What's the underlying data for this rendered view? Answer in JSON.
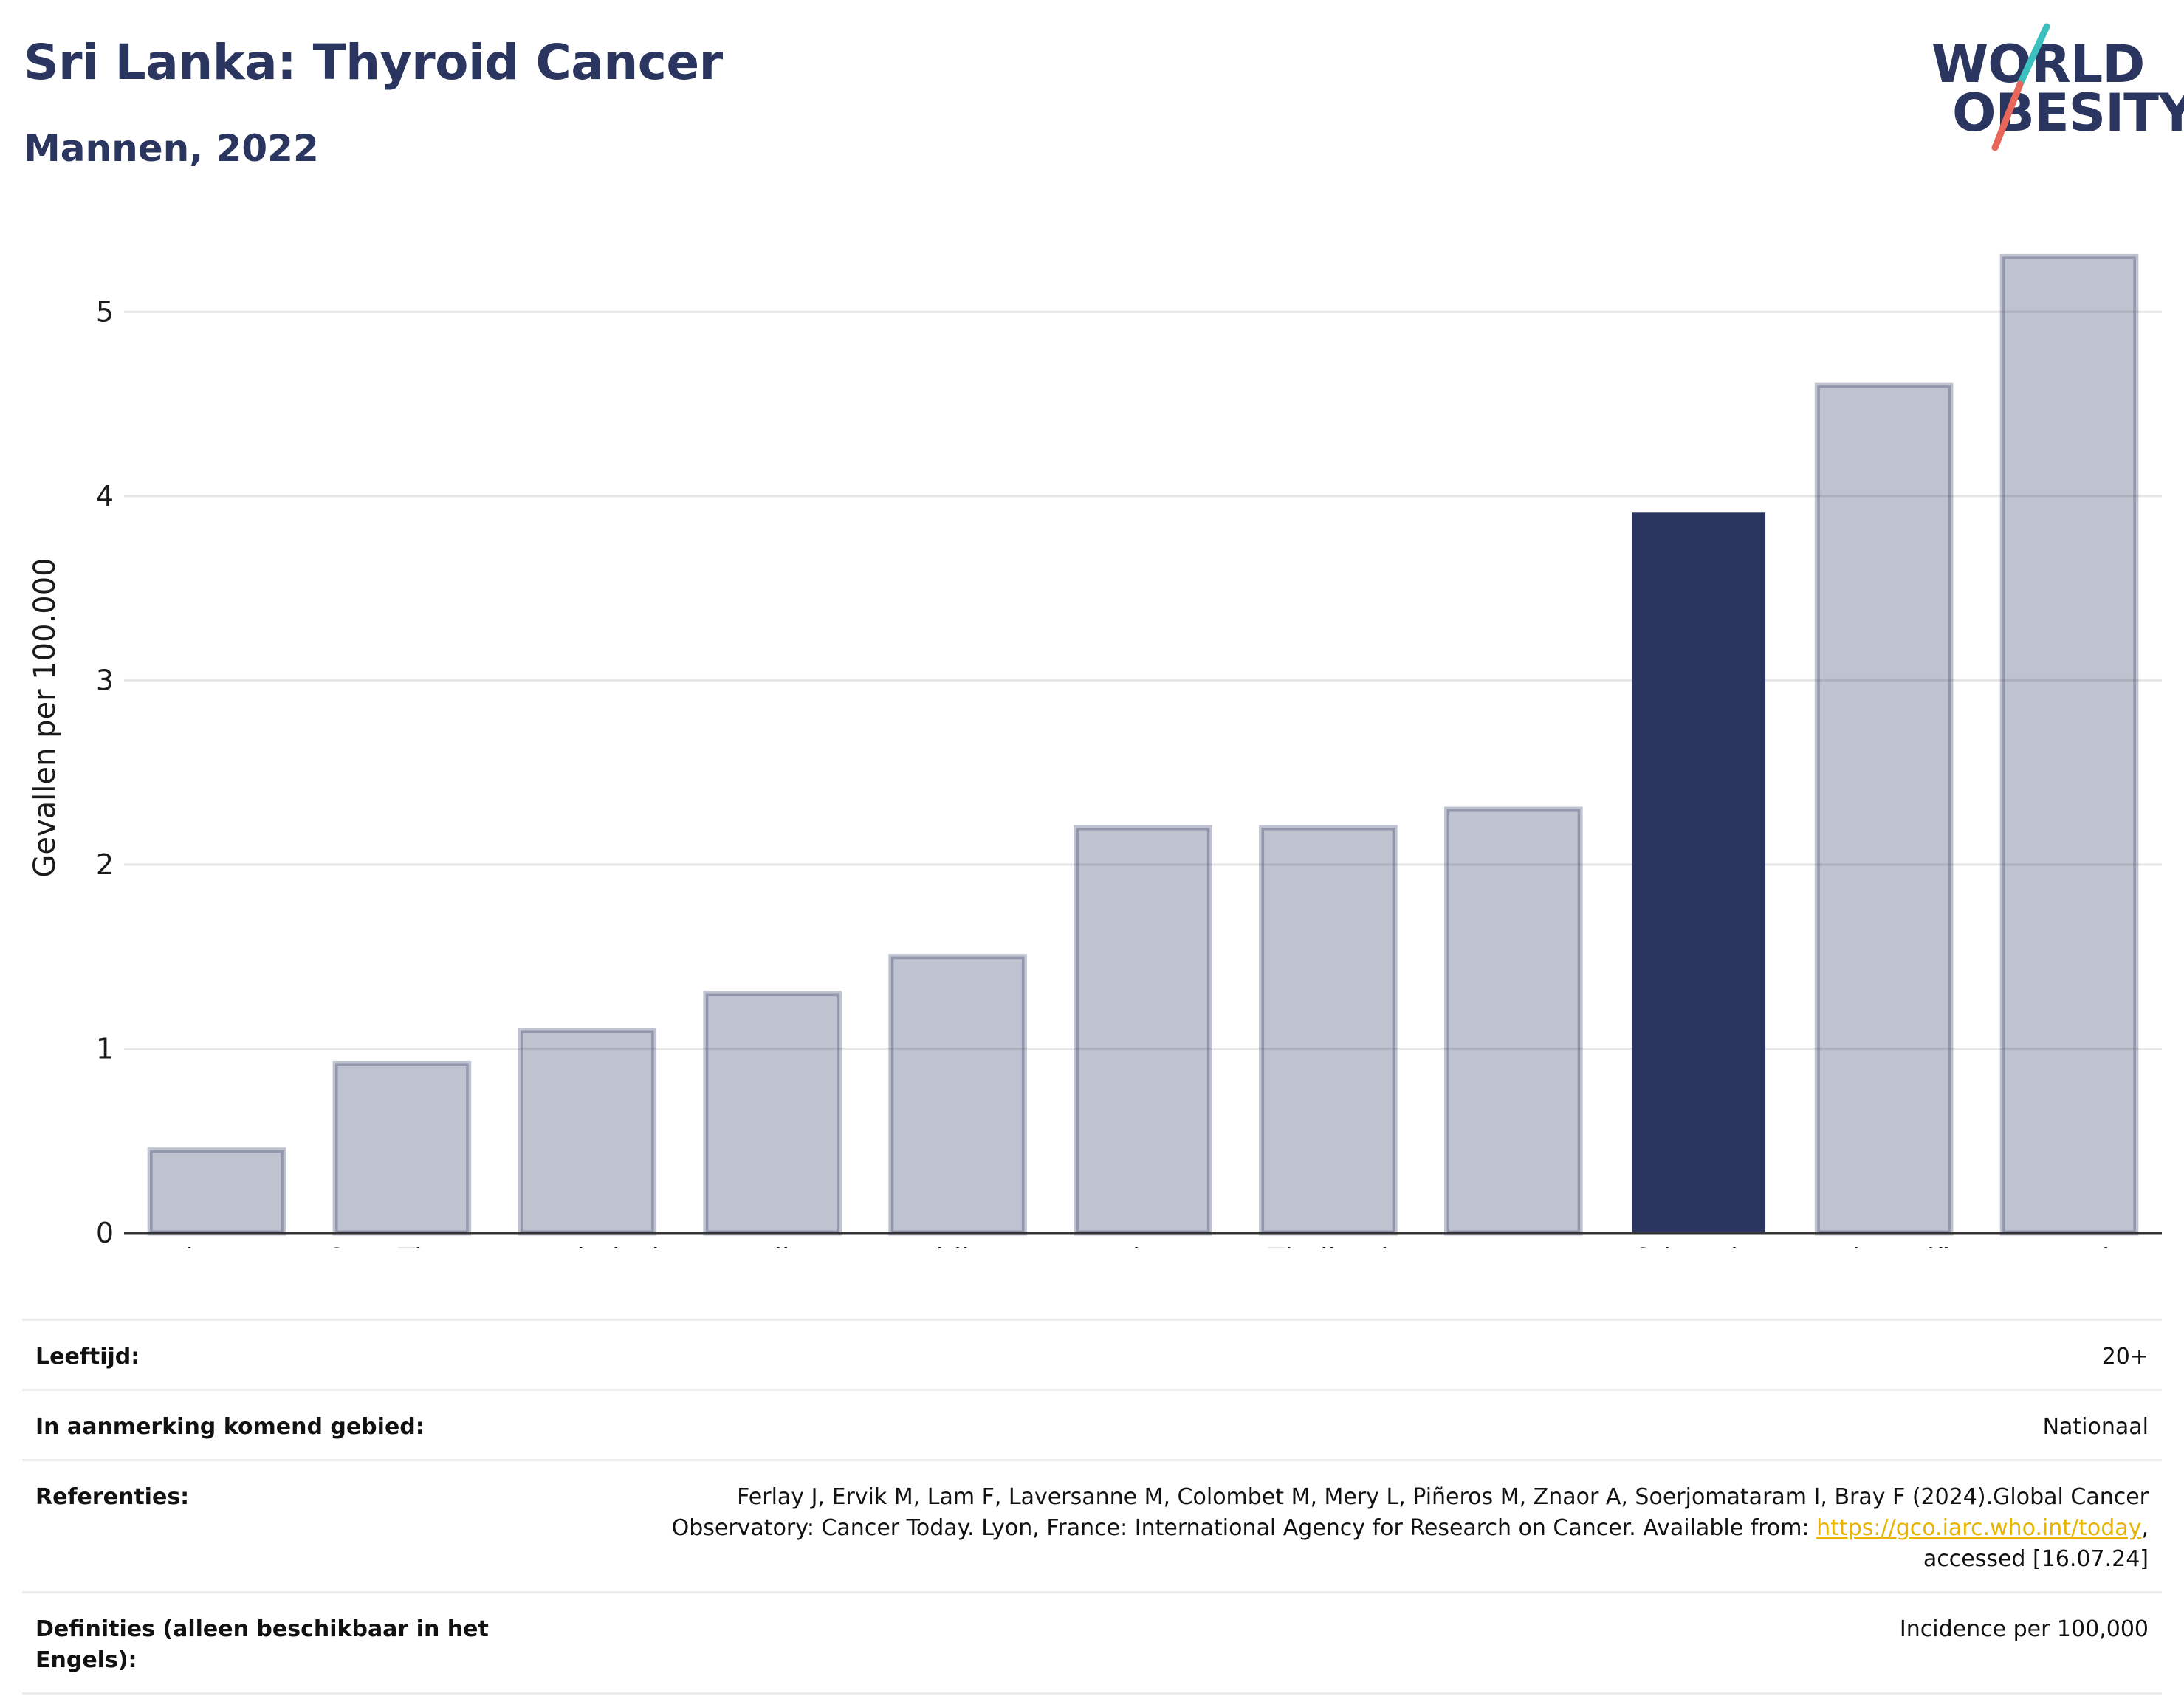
{
  "header": {
    "title": "Sri Lanka: Thyroid Cancer",
    "subtitle": "Mannen, 2022"
  },
  "logo": {
    "line1": "WORLD",
    "line2": "OBESITY",
    "accent_colors": [
      "#3bbfbf",
      "#e8665a"
    ]
  },
  "chart_data": {
    "type": "bar",
    "categories": [
      "Bhutan",
      "Oost-Timor",
      "Bangladesh",
      "India",
      "Maldiven",
      "Noord-Korea",
      "Thailand",
      "Myanmar",
      "Sri Lanka",
      "Indonesië",
      "Nepal"
    ],
    "values": [
      0.45,
      0.92,
      1.1,
      1.3,
      1.5,
      2.2,
      2.2,
      2.3,
      3.91,
      4.6,
      5.3
    ],
    "highlight": "Sri Lanka",
    "ylabel": "Gevallen per 100.000",
    "ylim": [
      0,
      5.45
    ],
    "yticks": [
      0,
      1,
      2,
      3,
      4,
      5
    ],
    "grid": true,
    "colors": {
      "bar": "#2a3560",
      "bar_opacity": 0.3,
      "highlight": "#2a3560",
      "grid": "#e6e6e6",
      "axis": "#333333"
    }
  },
  "info": {
    "age_label": "Leeftijd:",
    "age_value": "20+",
    "area_label": "In aanmerking komend gebied:",
    "area_value": "Nationaal",
    "ref_label": "Referenties:",
    "ref_text_1": "Ferlay J, Ervik M, Lam F, Laversanne M, Colombet M, Mery L, Piñeros M, Znaor A, Soerjomataram I, Bray F (2024).Global Cancer Observatory: Cancer Today. Lyon, France: International Agency for Research on Cancer. Available from: ",
    "ref_link": "https://gco.iarc.who.int/today",
    "ref_text_2": ", accessed [16.07.24]",
    "def_label": "Definities (alleen beschikbaar in het Engels):",
    "def_value": "Incidence per 100,000"
  }
}
